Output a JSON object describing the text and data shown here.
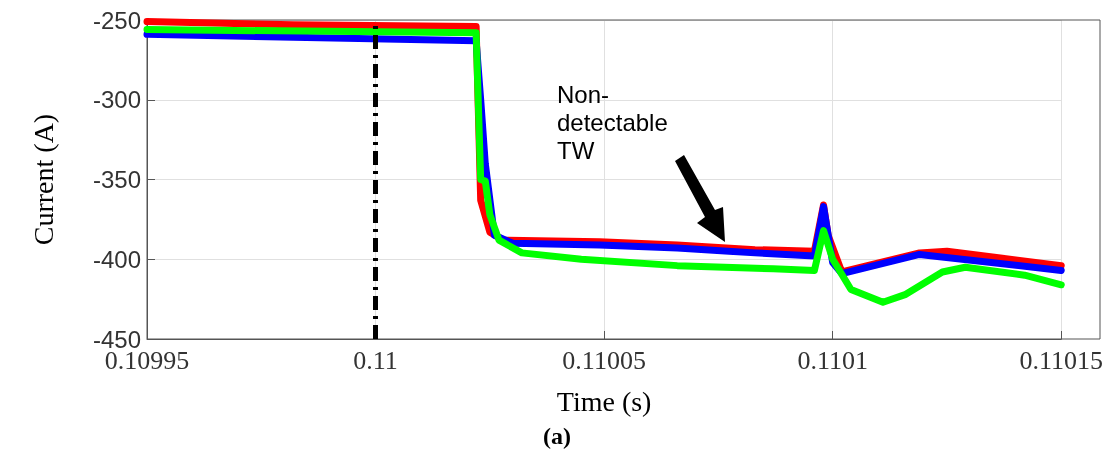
{
  "chart_data": {
    "type": "line",
    "title": "(a)",
    "xlabel": "Time (s)",
    "ylabel": "Current (A)",
    "xlim": [
      0.10995,
      0.11015
    ],
    "xticks": [
      0.10995,
      0.11,
      0.11005,
      0.1101,
      0.11015
    ],
    "ylim": [
      -450,
      -250
    ],
    "yticks": [
      -450,
      -400,
      -350,
      -300,
      -250
    ],
    "grid": true,
    "line_style": "solid",
    "marker": "none",
    "ref_lines": [
      {
        "axis": "x",
        "value": 0.11,
        "color": "#000000",
        "line_style": "dashed"
      }
    ],
    "annotations": [
      "Non-\ndetectable\nTW"
    ],
    "series": [
      {
        "color": "#ff0000",
        "x": [
          0.10995,
          0.109982,
          0.110022,
          0.110023,
          0.110025,
          0.110028,
          0.110049,
          0.110066,
          0.110083,
          0.110096,
          0.110098,
          0.110099,
          0.110102,
          0.110119,
          0.110125,
          0.11015
        ],
        "values": [
          -251,
          -253,
          -254,
          -363,
          -383,
          -388,
          -389,
          -391,
          -394,
          -395,
          -366,
          -385,
          -408,
          -396,
          -395,
          -404
        ]
      },
      {
        "color": "#0000ff",
        "x": [
          0.10995,
          0.110022,
          0.110023,
          0.110024,
          0.110026,
          0.11003,
          0.110049,
          0.110066,
          0.110083,
          0.110096,
          0.110098,
          0.1101,
          0.110102,
          0.110119,
          0.11015
        ],
        "values": [
          -259,
          -263,
          -300,
          -340,
          -385,
          -390,
          -391,
          -393,
          -396,
          -398,
          -367,
          -402,
          -409,
          -397,
          -407
        ]
      },
      {
        "color": "#00ff00",
        "x": [
          0.10995,
          0.110022,
          0.110023,
          0.110024,
          0.110025,
          0.110027,
          0.110032,
          0.110045,
          0.110066,
          0.110087,
          0.110096,
          0.110098,
          0.1101,
          0.110104,
          0.110111,
          0.110116,
          0.110124,
          0.110129,
          0.110142,
          0.11015
        ],
        "values": [
          -256,
          -258,
          -350,
          -351,
          -372,
          -388,
          -396,
          -400,
          -404,
          -406,
          -407,
          -382,
          -400,
          -419,
          -427,
          -422,
          -408,
          -405,
          -410,
          -416
        ]
      }
    ]
  }
}
